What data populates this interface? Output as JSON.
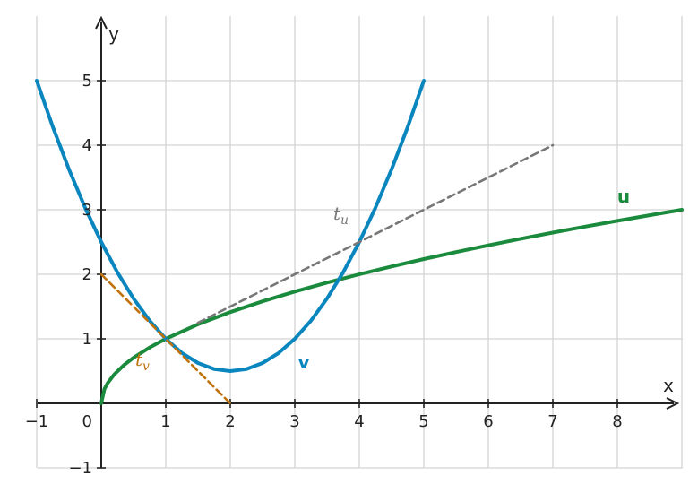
{
  "chart_data": {
    "type": "line",
    "xlabel": "x",
    "ylabel": "y",
    "xlim": [
      -1,
      9
    ],
    "ylim": [
      -1,
      6
    ],
    "grid": true,
    "x_ticks": [
      -1,
      1,
      2,
      3,
      4,
      5,
      6,
      7,
      8
    ],
    "x_tick_labels": [
      "−1",
      "1",
      "2",
      "3",
      "4",
      "5",
      "6",
      "7",
      "8"
    ],
    "y_ticks": [
      -1,
      1,
      2,
      3,
      4,
      5
    ],
    "y_tick_labels": [
      "−1",
      "1",
      "2",
      "3",
      "4",
      "5"
    ],
    "origin_label": "0",
    "series": [
      {
        "name": "u",
        "color": "#1a8a3c",
        "style": "solid",
        "x": [
          0,
          0.05,
          0.1,
          0.2,
          0.35,
          0.5,
          0.75,
          1,
          1.5,
          2,
          2.5,
          3,
          3.5,
          4,
          4.5,
          5,
          5.5,
          6,
          6.5,
          7,
          7.5,
          8,
          8.5,
          9
        ],
        "y": [
          0,
          0.224,
          0.316,
          0.447,
          0.592,
          0.707,
          0.866,
          1,
          1.225,
          1.414,
          1.581,
          1.732,
          1.871,
          2,
          2.121,
          2.236,
          2.345,
          2.449,
          2.55,
          2.646,
          2.739,
          2.828,
          2.915,
          3
        ]
      },
      {
        "name": "v",
        "color": "#0a86bf",
        "style": "solid",
        "x": [
          -1,
          -0.75,
          -0.5,
          -0.25,
          0,
          0.25,
          0.5,
          0.75,
          1,
          1.25,
          1.5,
          1.75,
          2,
          2.25,
          2.5,
          2.75,
          3,
          3.25,
          3.5,
          3.75,
          4,
          4.25,
          4.5,
          4.75,
          5
        ],
        "y": [
          5,
          4.281,
          3.625,
          3.031,
          2.5,
          2.031,
          1.625,
          1.281,
          1,
          0.781,
          0.625,
          0.531,
          0.5,
          0.531,
          0.625,
          0.781,
          1,
          1.281,
          1.625,
          2.031,
          2.5,
          3.031,
          3.625,
          4.281,
          5
        ]
      },
      {
        "name": "t_u",
        "color": "#777777",
        "style": "dashed",
        "x": [
          1.5,
          7
        ],
        "y": [
          1.25,
          4
        ]
      },
      {
        "name": "t_v",
        "color": "#c0720c",
        "style": "dashed",
        "x": [
          0,
          2
        ],
        "y": [
          2,
          0
        ]
      }
    ],
    "labels": {
      "u": "u",
      "v": "v",
      "t_u_base": "t",
      "t_u_sub": "u",
      "t_v_base": "t",
      "t_v_sub": "v"
    }
  }
}
